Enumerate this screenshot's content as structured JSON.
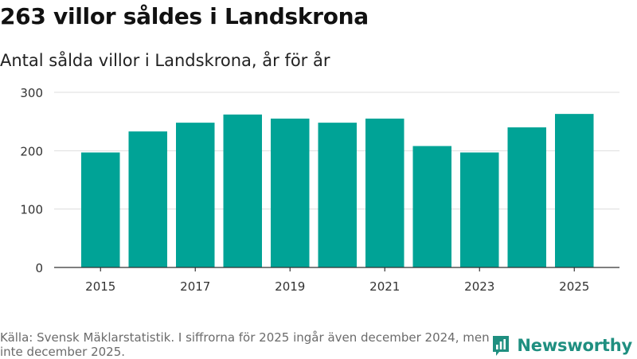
{
  "header": {
    "title": "263 villor såldes i Landskrona",
    "subtitle": "Antal sålda villor i Landskrona, år för år"
  },
  "chart_data": {
    "type": "bar",
    "categories": [
      "2015",
      "2016",
      "2017",
      "2018",
      "2019",
      "2020",
      "2021",
      "2022",
      "2023",
      "2024",
      "2025"
    ],
    "values": [
      197,
      233,
      248,
      262,
      255,
      248,
      255,
      208,
      197,
      240,
      263
    ],
    "xlabel": "",
    "ylabel": "",
    "ylim": [
      0,
      300
    ],
    "yticks": [
      0,
      100,
      200,
      300
    ],
    "xtick_labels": [
      "2015",
      "2017",
      "2019",
      "2021",
      "2023",
      "2025"
    ],
    "grid": true,
    "bar_color": "#00a396"
  },
  "footer": {
    "source": "Källa: Svensk Mäklarstatistik. I siffrorna för 2025 ingår även december 2024, men inte december 2025.",
    "brand": "Newsworthy"
  },
  "colors": {
    "bar": "#00a396",
    "brand": "#1f8f80",
    "grid": "#dddddd"
  },
  "icons": {
    "brand_logo": "bar-chart-logo-icon"
  }
}
